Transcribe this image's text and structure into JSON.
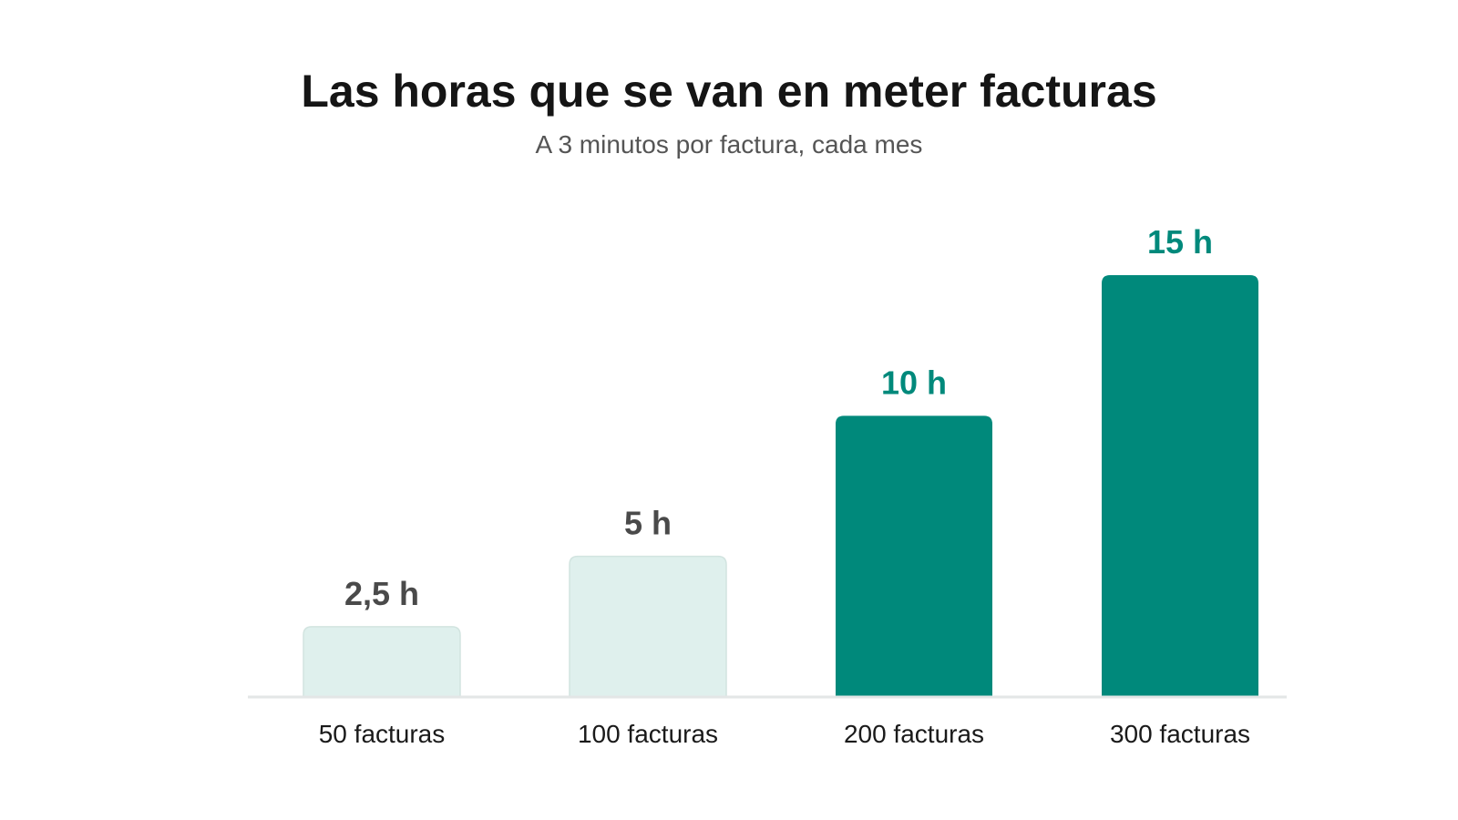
{
  "header": {
    "title": "Las horas que se van en meter facturas",
    "subtitle": "A 3 minutos por factura, cada mes"
  },
  "chart_data": {
    "type": "bar",
    "title": "Las horas que se van en meter facturas",
    "subtitle": "A 3 minutos por factura, cada mes",
    "categories": [
      "50 facturas",
      "100 facturas",
      "200 facturas",
      "300 facturas"
    ],
    "values": [
      2.5,
      5,
      10,
      15
    ],
    "value_labels": [
      "2,5 h",
      "5 h",
      "10 h",
      "15 h"
    ],
    "xlabel": "",
    "ylabel": "",
    "ylim": [
      0,
      15
    ],
    "grid": false,
    "legend": "none",
    "highlighted": [
      false,
      false,
      true,
      true
    ],
    "colors": {
      "bar_highlight": "#00897B",
      "bar_muted": "#DFF0ED",
      "bar_muted_border": "#D2E4E0",
      "label_highlight": "#00897B",
      "label_muted": "#4A4A4A",
      "baseline": "#E3E6E6",
      "category_text": "#1A1A1A"
    }
  }
}
